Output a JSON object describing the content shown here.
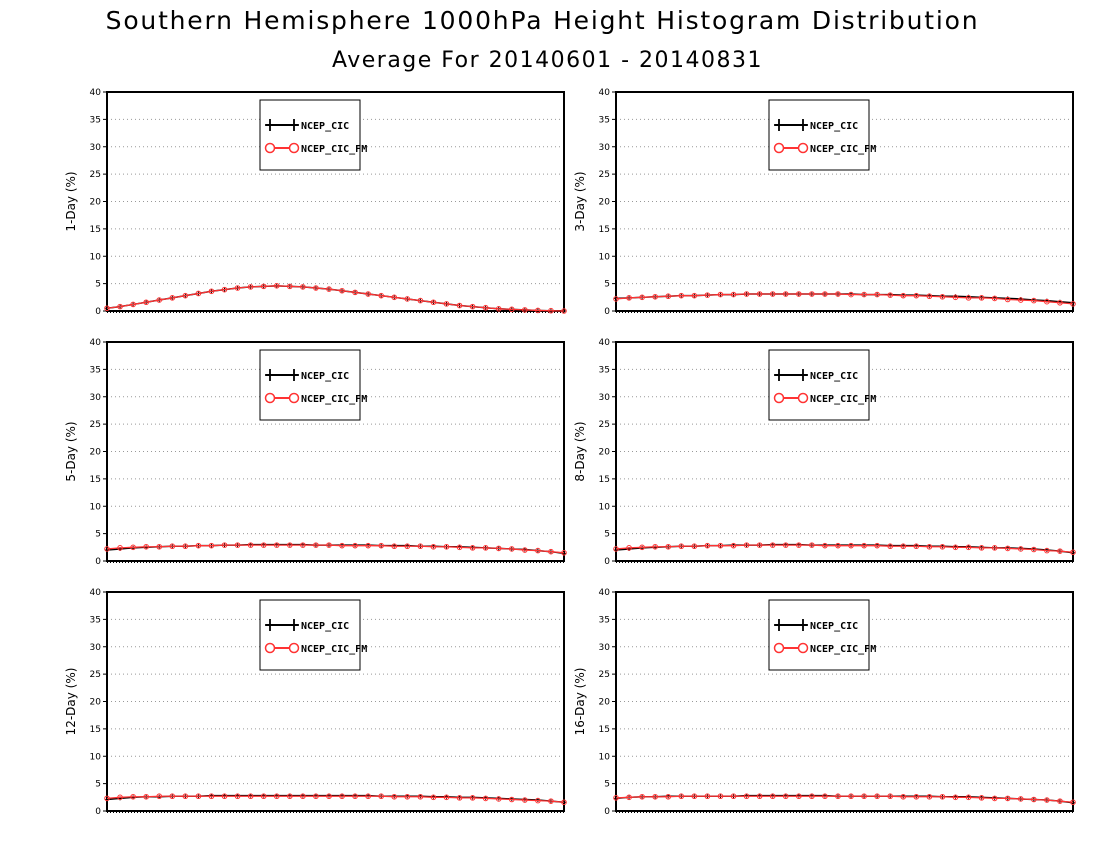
{
  "header": {
    "title": "Southern Hemisphere 1000hPa Height Histogram Distribution",
    "subtitle": "Average For 20140601 - 20140831"
  },
  "chart_data": [
    {
      "type": "line",
      "ylabel": "1-Day (%)",
      "ylim": [
        0,
        40
      ],
      "yticks": [
        0,
        5,
        10,
        15,
        20,
        25,
        30,
        35,
        40
      ],
      "grid": true,
      "legend": "top-center",
      "x": [
        1,
        2,
        3,
        4,
        5,
        6,
        7,
        8,
        9,
        10,
        11,
        12,
        13,
        14,
        15,
        16,
        17,
        18,
        19,
        20,
        21,
        22,
        23,
        24,
        25,
        26,
        27,
        28,
        29,
        30,
        31,
        32,
        33,
        34,
        35,
        36
      ],
      "series": [
        {
          "name": "NCEP_CIC",
          "color": "#000000",
          "marker": "plus",
          "values": [
            0.5,
            0.8,
            1.2,
            1.6,
            2.0,
            2.4,
            2.8,
            3.2,
            3.6,
            3.9,
            4.2,
            4.4,
            4.5,
            4.6,
            4.5,
            4.4,
            4.2,
            4.0,
            3.7,
            3.4,
            3.1,
            2.8,
            2.5,
            2.2,
            1.9,
            1.6,
            1.3,
            1.0,
            0.8,
            0.6,
            0.4,
            0.3,
            0.2,
            0.1,
            0.05,
            0.0
          ]
        },
        {
          "name": "NCEP_CIC_FM",
          "color": "#ff3333",
          "marker": "circle",
          "values": [
            0.5,
            0.8,
            1.2,
            1.6,
            2.0,
            2.4,
            2.8,
            3.2,
            3.6,
            3.9,
            4.2,
            4.4,
            4.5,
            4.6,
            4.5,
            4.4,
            4.2,
            4.0,
            3.7,
            3.4,
            3.1,
            2.8,
            2.5,
            2.2,
            1.9,
            1.6,
            1.3,
            1.0,
            0.8,
            0.6,
            0.4,
            0.3,
            0.2,
            0.1,
            0.05,
            0.0
          ]
        }
      ]
    },
    {
      "type": "line",
      "ylabel": "3-Day (%)",
      "ylim": [
        0,
        40
      ],
      "yticks": [
        0,
        5,
        10,
        15,
        20,
        25,
        30,
        35,
        40
      ],
      "grid": true,
      "legend": "top-center",
      "x": [
        1,
        2,
        3,
        4,
        5,
        6,
        7,
        8,
        9,
        10,
        11,
        12,
        13,
        14,
        15,
        16,
        17,
        18,
        19,
        20,
        21,
        22,
        23,
        24,
        25,
        26,
        27,
        28,
        29,
        30,
        31,
        32,
        33,
        34,
        35,
        36
      ],
      "series": [
        {
          "name": "NCEP_CIC",
          "color": "#000000",
          "marker": "plus",
          "values": [
            2.3,
            2.4,
            2.5,
            2.6,
            2.7,
            2.8,
            2.8,
            2.9,
            3.0,
            3.0,
            3.1,
            3.1,
            3.1,
            3.1,
            3.1,
            3.1,
            3.1,
            3.1,
            3.1,
            3.0,
            3.0,
            3.0,
            2.9,
            2.9,
            2.8,
            2.7,
            2.7,
            2.6,
            2.5,
            2.4,
            2.3,
            2.2,
            2.0,
            1.9,
            1.7,
            1.5
          ]
        },
        {
          "name": "NCEP_CIC_FM",
          "color": "#ff3333",
          "marker": "circle",
          "values": [
            2.2,
            2.4,
            2.5,
            2.6,
            2.7,
            2.8,
            2.8,
            2.9,
            3.0,
            3.0,
            3.1,
            3.1,
            3.1,
            3.1,
            3.1,
            3.1,
            3.1,
            3.1,
            3.0,
            3.0,
            3.0,
            2.9,
            2.8,
            2.8,
            2.7,
            2.6,
            2.5,
            2.4,
            2.4,
            2.3,
            2.1,
            2.0,
            1.9,
            1.7,
            1.5,
            1.3
          ]
        }
      ]
    },
    {
      "type": "line",
      "ylabel": "5-Day (%)",
      "ylim": [
        0,
        40
      ],
      "yticks": [
        0,
        5,
        10,
        15,
        20,
        25,
        30,
        35,
        40
      ],
      "grid": true,
      "legend": "top-center",
      "x": [
        1,
        2,
        3,
        4,
        5,
        6,
        7,
        8,
        9,
        10,
        11,
        12,
        13,
        14,
        15,
        16,
        17,
        18,
        19,
        20,
        21,
        22,
        23,
        24,
        25,
        26,
        27,
        28,
        29,
        30,
        31,
        32,
        33,
        34,
        35,
        36
      ],
      "series": [
        {
          "name": "NCEP_CIC",
          "color": "#000000",
          "marker": "plus",
          "values": [
            2.0,
            2.2,
            2.4,
            2.5,
            2.6,
            2.7,
            2.7,
            2.8,
            2.8,
            2.9,
            2.9,
            3.0,
            3.0,
            3.0,
            3.0,
            3.0,
            2.9,
            2.9,
            2.9,
            2.9,
            2.9,
            2.8,
            2.8,
            2.8,
            2.7,
            2.7,
            2.6,
            2.6,
            2.5,
            2.4,
            2.3,
            2.2,
            2.1,
            1.9,
            1.7,
            1.4
          ]
        },
        {
          "name": "NCEP_CIC_FM",
          "color": "#ff3333",
          "marker": "circle",
          "values": [
            2.2,
            2.4,
            2.5,
            2.6,
            2.6,
            2.7,
            2.7,
            2.8,
            2.8,
            2.9,
            2.9,
            2.9,
            2.9,
            2.9,
            2.9,
            2.9,
            2.9,
            2.9,
            2.8,
            2.8,
            2.8,
            2.8,
            2.7,
            2.7,
            2.7,
            2.6,
            2.6,
            2.5,
            2.4,
            2.4,
            2.3,
            2.2,
            2.0,
            1.9,
            1.7,
            1.5
          ]
        }
      ]
    },
    {
      "type": "line",
      "ylabel": "8-Day (%)",
      "ylim": [
        0,
        40
      ],
      "yticks": [
        0,
        5,
        10,
        15,
        20,
        25,
        30,
        35,
        40
      ],
      "grid": true,
      "legend": "top-center",
      "x": [
        1,
        2,
        3,
        4,
        5,
        6,
        7,
        8,
        9,
        10,
        11,
        12,
        13,
        14,
        15,
        16,
        17,
        18,
        19,
        20,
        21,
        22,
        23,
        24,
        25,
        26,
        27,
        28,
        29,
        30,
        31,
        32,
        33,
        34,
        35,
        36
      ],
      "series": [
        {
          "name": "NCEP_CIC",
          "color": "#000000",
          "marker": "plus",
          "values": [
            2.0,
            2.2,
            2.4,
            2.5,
            2.6,
            2.7,
            2.7,
            2.8,
            2.8,
            2.9,
            2.9,
            2.9,
            3.0,
            3.0,
            3.0,
            2.9,
            2.9,
            2.9,
            2.9,
            2.9,
            2.9,
            2.8,
            2.8,
            2.8,
            2.7,
            2.7,
            2.6,
            2.6,
            2.5,
            2.4,
            2.4,
            2.3,
            2.2,
            2.0,
            1.8,
            1.5
          ]
        },
        {
          "name": "NCEP_CIC_FM",
          "color": "#ff3333",
          "marker": "circle",
          "values": [
            2.2,
            2.4,
            2.5,
            2.6,
            2.6,
            2.7,
            2.7,
            2.8,
            2.8,
            2.8,
            2.9,
            2.9,
            2.9,
            2.9,
            2.9,
            2.9,
            2.8,
            2.8,
            2.8,
            2.8,
            2.8,
            2.7,
            2.7,
            2.7,
            2.6,
            2.6,
            2.5,
            2.5,
            2.4,
            2.4,
            2.3,
            2.2,
            2.1,
            1.9,
            1.8,
            1.6
          ]
        }
      ]
    },
    {
      "type": "line",
      "ylabel": "12-Day (%)",
      "ylim": [
        0,
        40
      ],
      "yticks": [
        0,
        5,
        10,
        15,
        20,
        25,
        30,
        35,
        40
      ],
      "grid": true,
      "legend": "top-center",
      "x": [
        1,
        2,
        3,
        4,
        5,
        6,
        7,
        8,
        9,
        10,
        11,
        12,
        13,
        14,
        15,
        16,
        17,
        18,
        19,
        20,
        21,
        22,
        23,
        24,
        25,
        26,
        27,
        28,
        29,
        30,
        31,
        32,
        33,
        34,
        35,
        36
      ],
      "series": [
        {
          "name": "NCEP_CIC",
          "color": "#000000",
          "marker": "plus",
          "values": [
            2.1,
            2.3,
            2.5,
            2.6,
            2.6,
            2.7,
            2.7,
            2.7,
            2.8,
            2.8,
            2.8,
            2.8,
            2.8,
            2.8,
            2.8,
            2.8,
            2.8,
            2.8,
            2.8,
            2.8,
            2.8,
            2.7,
            2.7,
            2.7,
            2.7,
            2.6,
            2.6,
            2.5,
            2.5,
            2.4,
            2.3,
            2.2,
            2.1,
            2.0,
            1.8,
            1.6
          ]
        },
        {
          "name": "NCEP_CIC_FM",
          "color": "#ff3333",
          "marker": "circle",
          "values": [
            2.3,
            2.5,
            2.6,
            2.6,
            2.7,
            2.7,
            2.7,
            2.7,
            2.7,
            2.7,
            2.7,
            2.7,
            2.7,
            2.7,
            2.7,
            2.7,
            2.7,
            2.7,
            2.7,
            2.7,
            2.7,
            2.7,
            2.6,
            2.6,
            2.6,
            2.5,
            2.5,
            2.4,
            2.4,
            2.3,
            2.2,
            2.1,
            2.0,
            1.9,
            1.8,
            1.6
          ]
        }
      ]
    },
    {
      "type": "line",
      "ylabel": "16-Day (%)",
      "ylim": [
        0,
        40
      ],
      "yticks": [
        0,
        5,
        10,
        15,
        20,
        25,
        30,
        35,
        40
      ],
      "grid": true,
      "legend": "top-center",
      "x": [
        1,
        2,
        3,
        4,
        5,
        6,
        7,
        8,
        9,
        10,
        11,
        12,
        13,
        14,
        15,
        16,
        17,
        18,
        19,
        20,
        21,
        22,
        23,
        24,
        25,
        26,
        27,
        28,
        29,
        30,
        31,
        32,
        33,
        34,
        35,
        36
      ],
      "series": [
        {
          "name": "NCEP_CIC",
          "color": "#000000",
          "marker": "plus",
          "values": [
            2.3,
            2.5,
            2.6,
            2.6,
            2.7,
            2.7,
            2.7,
            2.7,
            2.7,
            2.7,
            2.8,
            2.8,
            2.8,
            2.8,
            2.8,
            2.8,
            2.8,
            2.7,
            2.7,
            2.7,
            2.7,
            2.7,
            2.7,
            2.7,
            2.7,
            2.6,
            2.6,
            2.6,
            2.5,
            2.4,
            2.3,
            2.2,
            2.1,
            2.0,
            1.8,
            1.5
          ]
        },
        {
          "name": "NCEP_CIC_FM",
          "color": "#ff3333",
          "marker": "circle",
          "values": [
            2.4,
            2.5,
            2.6,
            2.6,
            2.6,
            2.7,
            2.7,
            2.7,
            2.7,
            2.7,
            2.7,
            2.7,
            2.7,
            2.7,
            2.7,
            2.7,
            2.7,
            2.7,
            2.7,
            2.7,
            2.7,
            2.7,
            2.6,
            2.6,
            2.6,
            2.6,
            2.5,
            2.5,
            2.4,
            2.3,
            2.3,
            2.2,
            2.1,
            2.0,
            1.8,
            1.6
          ]
        }
      ]
    }
  ]
}
